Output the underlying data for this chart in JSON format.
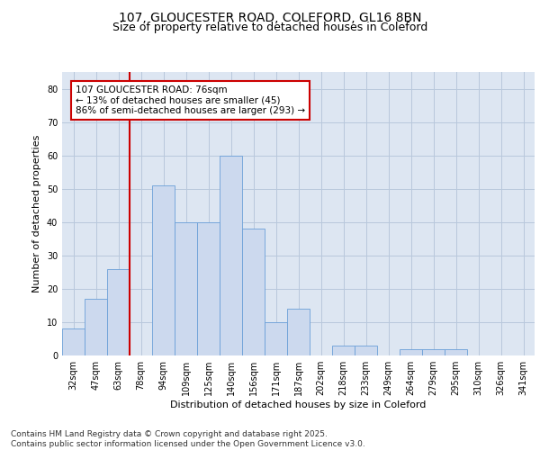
{
  "title_line1": "107, GLOUCESTER ROAD, COLEFORD, GL16 8BN",
  "title_line2": "Size of property relative to detached houses in Coleford",
  "xlabel": "Distribution of detached houses by size in Coleford",
  "ylabel": "Number of detached properties",
  "categories": [
    "32sqm",
    "47sqm",
    "63sqm",
    "78sqm",
    "94sqm",
    "109sqm",
    "125sqm",
    "140sqm",
    "156sqm",
    "171sqm",
    "187sqm",
    "202sqm",
    "218sqm",
    "233sqm",
    "249sqm",
    "264sqm",
    "279sqm",
    "295sqm",
    "310sqm",
    "326sqm",
    "341sqm"
  ],
  "values": [
    8,
    17,
    26,
    0,
    51,
    40,
    40,
    60,
    38,
    10,
    14,
    0,
    3,
    3,
    0,
    2,
    2,
    2,
    0,
    0,
    0
  ],
  "bar_color": "#ccd9ee",
  "bar_edge_color": "#6a9fd8",
  "grid_color": "#b8c8dc",
  "background_color": "#dde6f2",
  "vline_color": "#cc0000",
  "annotation_text": "107 GLOUCESTER ROAD: 76sqm\n← 13% of detached houses are smaller (45)\n86% of semi-detached houses are larger (293) →",
  "annotation_box_color": "#cc0000",
  "ylim": [
    0,
    85
  ],
  "yticks": [
    0,
    10,
    20,
    30,
    40,
    50,
    60,
    70,
    80
  ],
  "footer_text": "Contains HM Land Registry data © Crown copyright and database right 2025.\nContains public sector information licensed under the Open Government Licence v3.0.",
  "title_fontsize": 10,
  "subtitle_fontsize": 9,
  "axis_label_fontsize": 8,
  "tick_fontsize": 7,
  "annotation_fontsize": 7.5,
  "footer_fontsize": 6.5
}
